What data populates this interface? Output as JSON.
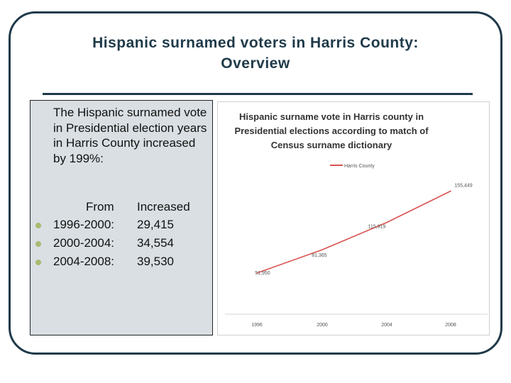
{
  "slide": {
    "title_line1": "Hispanic surnamed voters in Harris County:",
    "title_line2": "Overview"
  },
  "text_panel": {
    "intro": "The Hispanic surnamed vote in Presidential election years in Harris County increased by 199%:",
    "col_from": "From",
    "col_increased": "Increased",
    "rows": [
      {
        "period": "1996-2000:",
        "increase": "29,415"
      },
      {
        "period": "2000-2004:",
        "increase": "34,554"
      },
      {
        "period": "2004-2008:",
        "increase": "39,530"
      }
    ]
  },
  "colors": {
    "frame": "#1f3a4a",
    "bullet": "#a9bb72",
    "series": "#d9534f"
  },
  "chart_data": {
    "type": "line",
    "title": "Hispanic surname vote in Harris county in Presidential elections according to match of Census  surname dictionary",
    "title_lines": [
      "Hispanic surname vote in Harris county in",
      "Presidential elections according to match of",
      "Census  surname dictionary"
    ],
    "categories": [
      "1996",
      "2000",
      "2004",
      "2008"
    ],
    "series": [
      {
        "name": "Harris County",
        "values": [
          51950,
          81365,
          115919,
          155449
        ],
        "labels": [
          "51,950",
          "81,365",
          "115,919",
          "155,449"
        ]
      }
    ],
    "legend": "top",
    "ylim": [
      0,
      180000
    ],
    "grid": false,
    "xlabel": "",
    "ylabel": ""
  }
}
